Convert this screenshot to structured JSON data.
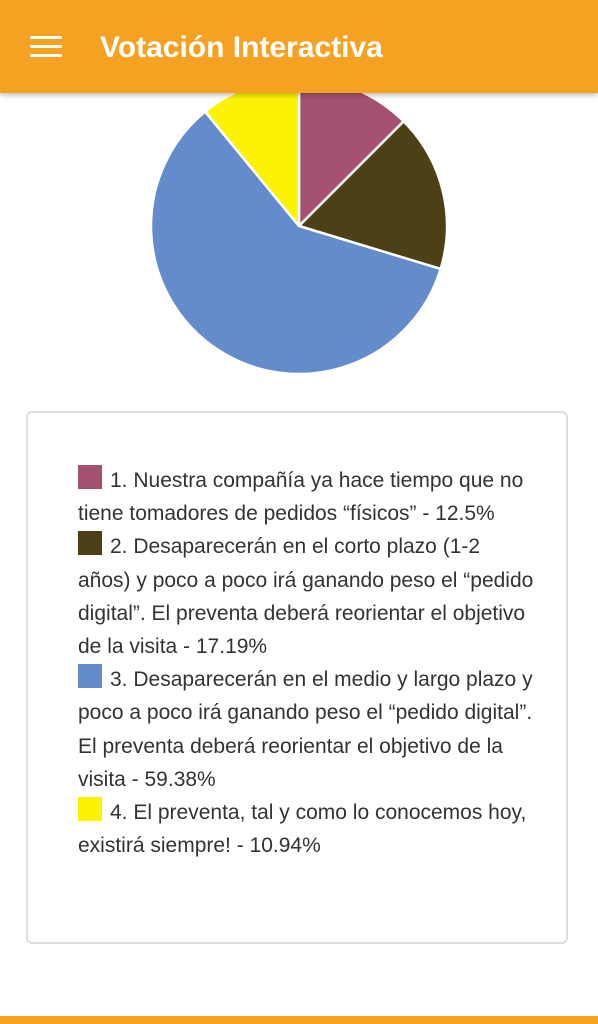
{
  "app_bar": {
    "title": "Votación Interactiva",
    "menu_icon": "hamburger-menu-icon",
    "background_color": "#f5a122"
  },
  "chart_data": {
    "type": "pie",
    "series": [
      {
        "label": "1. Nuestra compañía ya hace tiempo que no tiene tomadores de pedidos “físicos” - 12.5%",
        "value": 12.5,
        "color": "#a45171"
      },
      {
        "label": "2. Desaparecerán en el corto plazo (1-2 años) y poco a poco irá ganando peso el “pedido digital”. El preventa deberá reorientar el objetivo de la visita - 17.19%",
        "value": 17.19,
        "color": "#4d3f16"
      },
      {
        "label": "3. Desaparecerán en el medio y largo plazo y poco a poco irá ganando peso el “pedido digital”. El preventa deberá reorientar el objetivo de la visita - 59.38%",
        "value": 59.38,
        "color": "#648ccc"
      },
      {
        "label": "4. El preventa, tal y como lo conocemos hoy, existirá siempre! - 10.94%",
        "value": 10.94,
        "color": "#fcf203"
      }
    ]
  }
}
